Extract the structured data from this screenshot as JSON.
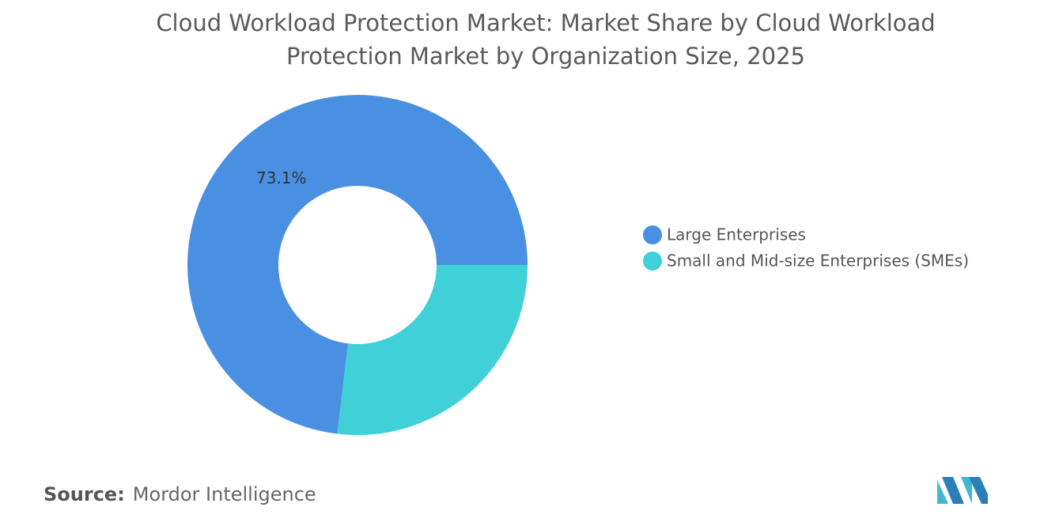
{
  "chart_data": {
    "type": "donut",
    "title": "Cloud Workload Protection Market: Market Share by Cloud Workload Protection Market by Organization Size, 2025",
    "categories": [
      "Large Enterprises",
      "Small and Mid-size Enterprises (SMEs)"
    ],
    "values": [
      73.1,
      26.9
    ],
    "value_labels": [
      "73.1%",
      null
    ],
    "colors": [
      "#4a90e2",
      "#40d0d8"
    ]
  },
  "source": {
    "label": "Source:",
    "text": "Mordor Intelligence"
  }
}
